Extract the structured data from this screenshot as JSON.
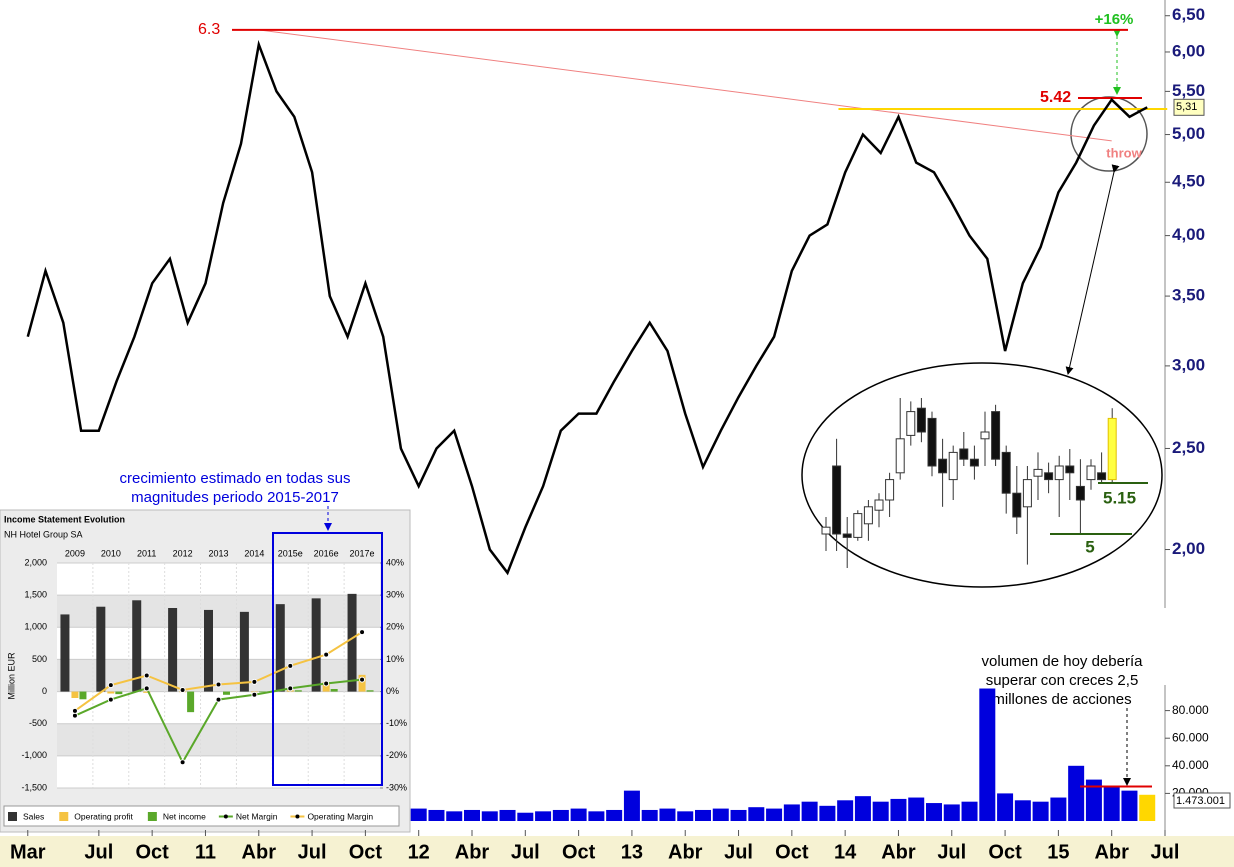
{
  "chart_data": [
    {
      "type": "line",
      "color": "#000000",
      "x": [
        "2010-03",
        "2010-04",
        "2010-05",
        "2010-06",
        "2010-07",
        "2010-08",
        "2010-09",
        "2010-10",
        "2010-11",
        "2010-12",
        "2011-01",
        "2011-02",
        "2011-03",
        "2011-04",
        "2011-05",
        "2011-06",
        "2011-07",
        "2011-08",
        "2011-09",
        "2011-10",
        "2011-11",
        "2011-12",
        "2012-01",
        "2012-02",
        "2012-03",
        "2012-04",
        "2012-05",
        "2012-06",
        "2012-07",
        "2012-08",
        "2012-09",
        "2012-10",
        "2012-11",
        "2012-12",
        "2013-01",
        "2013-02",
        "2013-03",
        "2013-04",
        "2013-05",
        "2013-06",
        "2013-07",
        "2013-08",
        "2013-09",
        "2013-10",
        "2013-11",
        "2013-12",
        "2014-01",
        "2014-02",
        "2014-03",
        "2014-04",
        "2014-05",
        "2014-06",
        "2014-07",
        "2014-08",
        "2014-09",
        "2014-10",
        "2014-11",
        "2014-12",
        "2015-01",
        "2015-02",
        "2015-03",
        "2015-04",
        "2015-05",
        "2015-06"
      ],
      "values": [
        3.2,
        3.7,
        3.3,
        2.6,
        2.6,
        2.9,
        3.2,
        3.6,
        3.8,
        3.3,
        3.6,
        4.3,
        4.9,
        6.1,
        5.5,
        5.2,
        4.6,
        3.5,
        3.2,
        3.6,
        3.2,
        2.5,
        2.3,
        2.5,
        2.6,
        2.3,
        2.0,
        1.9,
        2.1,
        2.3,
        2.6,
        2.7,
        2.7,
        2.9,
        3.1,
        3.3,
        3.1,
        2.7,
        2.4,
        2.6,
        2.8,
        3.0,
        3.2,
        3.7,
        4.0,
        4.1,
        4.6,
        5.0,
        4.8,
        5.2,
        4.7,
        4.6,
        4.3,
        4.0,
        3.8,
        3.1,
        3.6,
        3.9,
        4.4,
        4.7,
        5.1,
        5.4,
        5.2,
        5.31
      ],
      "xlim": [
        "2010-02",
        "2015-07"
      ],
      "xticks": [
        {
          "value": "2010-03",
          "label": "Mar"
        },
        {
          "value": "2010-07",
          "label": "Jul"
        },
        {
          "value": "2010-10",
          "label": "Oct"
        },
        {
          "value": "2011-01",
          "label": "11"
        },
        {
          "value": "2011-04",
          "label": "Abr"
        },
        {
          "value": "2011-07",
          "label": "Jul"
        },
        {
          "value": "2011-10",
          "label": "Oct"
        },
        {
          "value": "2012-01",
          "label": "12"
        },
        {
          "value": "2012-04",
          "label": "Abr"
        },
        {
          "value": "2012-07",
          "label": "Jul"
        },
        {
          "value": "2012-10",
          "label": "Oct"
        },
        {
          "value": "2013-01",
          "label": "13"
        },
        {
          "value": "2013-04",
          "label": "Abr"
        },
        {
          "value": "2013-07",
          "label": "Jul"
        },
        {
          "value": "2013-10",
          "label": "Oct"
        },
        {
          "value": "2014-01",
          "label": "14"
        },
        {
          "value": "2014-04",
          "label": "Abr"
        },
        {
          "value": "2014-07",
          "label": "Jul"
        },
        {
          "value": "2014-10",
          "label": "Oct"
        },
        {
          "value": "2015-01",
          "label": "15"
        },
        {
          "value": "2015-04",
          "label": "Abr"
        },
        {
          "value": "2015-07",
          "label": "Jul"
        }
      ],
      "ylim": [
        1.75,
        6.7
      ],
      "log_scale": true,
      "yticks": [
        {
          "value": 2,
          "label": "2,00"
        },
        {
          "value": 2.5,
          "label": "2,50"
        },
        {
          "value": 3,
          "label": "3,00"
        },
        {
          "value": 3.5,
          "label": "3,50"
        },
        {
          "value": 4,
          "label": "4,00"
        },
        {
          "value": 4.5,
          "label": "4,50"
        },
        {
          "value": 5,
          "label": "5,00"
        },
        {
          "value": 5.5,
          "label": "5,50"
        },
        {
          "value": 6,
          "label": "6,00"
        },
        {
          "value": 6.5,
          "label": "6,50"
        }
      ],
      "resistance": 6.3,
      "target": 5.42,
      "gain_label": "+16%",
      "throw_label": "throw",
      "last_price": {
        "value": 5.31,
        "label": "5,31"
      },
      "trendline": {
        "x": [
          "2011-04",
          "2015-04"
        ],
        "values": [
          6.3,
          4.93
        ]
      },
      "support": {
        "x": [
          "2014-04",
          "2015-06"
        ],
        "value": 5.29
      },
      "zoom": {
        "open": [
          5.0,
          5.2,
          5.0,
          4.99,
          5.03,
          5.07,
          5.1,
          5.18,
          5.29,
          5.37,
          5.34,
          5.22,
          5.16,
          5.25,
          5.22,
          5.28,
          5.36,
          5.24,
          5.12,
          5.08,
          5.17,
          5.18,
          5.16,
          5.2,
          5.14,
          5.16,
          5.18,
          5.16
        ],
        "high": [
          5.05,
          5.28,
          5.05,
          5.07,
          5.1,
          5.12,
          5.18,
          5.4,
          5.39,
          5.4,
          5.36,
          5.28,
          5.26,
          5.3,
          5.26,
          5.36,
          5.38,
          5.26,
          5.2,
          5.2,
          5.24,
          5.21,
          5.23,
          5.25,
          5.22,
          5.22,
          5.24,
          5.37
        ],
        "low": [
          4.95,
          4.95,
          4.9,
          4.98,
          4.98,
          5.02,
          5.05,
          5.16,
          5.26,
          5.27,
          5.17,
          5.08,
          5.1,
          5.2,
          5.16,
          5.2,
          5.2,
          5.06,
          5.0,
          4.91,
          5.1,
          5.12,
          5.05,
          5.1,
          5.0,
          5.13,
          5.15,
          5.15
        ],
        "close": [
          5.02,
          5.0,
          4.99,
          5.06,
          5.08,
          5.1,
          5.16,
          5.28,
          5.36,
          5.3,
          5.2,
          5.18,
          5.24,
          5.22,
          5.2,
          5.3,
          5.22,
          5.12,
          5.05,
          5.16,
          5.19,
          5.16,
          5.2,
          5.18,
          5.1,
          5.2,
          5.16,
          5.34
        ],
        "levels": [
          5.15,
          5
        ]
      },
      "notes": [
        [
          "crecimiento estimado en todas sus",
          "magnitudes periodo 2015-2017"
        ],
        [
          "volumen de hoy debería",
          "superar con creces 2,5",
          "millones de acciones"
        ]
      ]
    },
    {
      "type": "bar",
      "color": "#0000dd",
      "x": [
        "2012-01",
        "2012-02",
        "2012-03",
        "2012-04",
        "2012-05",
        "2012-06",
        "2012-07",
        "2012-08",
        "2012-09",
        "2012-10",
        "2012-11",
        "2012-12",
        "2013-01",
        "2013-02",
        "2013-03",
        "2013-04",
        "2013-05",
        "2013-06",
        "2013-07",
        "2013-08",
        "2013-09",
        "2013-10",
        "2013-11",
        "2013-12",
        "2014-01",
        "2014-02",
        "2014-03",
        "2014-04",
        "2014-05",
        "2014-06",
        "2014-07",
        "2014-08",
        "2014-09",
        "2014-10",
        "2014-11",
        "2014-12",
        "2015-01",
        "2015-02",
        "2015-03",
        "2015-04",
        "2015-05",
        "2015-06"
      ],
      "values": [
        9000,
        8000,
        7000,
        8000,
        7000,
        8000,
        6000,
        7000,
        8000,
        9000,
        7000,
        8000,
        22000,
        8000,
        9000,
        7000,
        8000,
        9000,
        8000,
        10000,
        9000,
        12000,
        14000,
        11000,
        15000,
        18000,
        14000,
        16000,
        17000,
        13000,
        12000,
        14000,
        96000,
        20000,
        15000,
        14000,
        17000,
        40000,
        30000,
        25000,
        22000,
        19000
      ],
      "ylim": [
        0,
        100000
      ],
      "yticks": [
        {
          "value": 20000,
          "label": "20.000"
        },
        {
          "value": 40000,
          "label": "40.000"
        },
        {
          "value": 60000,
          "label": "60.000"
        },
        {
          "value": 80000,
          "label": "80.000"
        }
      ],
      "alert_level": 25000,
      "last_label": "1.473.001"
    },
    {
      "type": "combo",
      "title": "Income Statement Evolution",
      "subtitle": "NH Hotel Group SA",
      "y_label": "Million EUR",
      "categories": [
        "2009",
        "2010",
        "2011",
        "2012",
        "2013",
        "2014",
        "2015e",
        "2016e",
        "2017e"
      ],
      "ylim": [
        -1500,
        2000
      ],
      "yticks": [
        {
          "value": -1500,
          "label": "-1,500"
        },
        {
          "value": -1000,
          "label": "-1,000"
        },
        -500,
        0,
        500,
        {
          "value": 1000,
          "label": "1,000"
        },
        {
          "value": 1500,
          "label": "1,500"
        },
        {
          "value": 2000,
          "label": "2,000"
        }
      ],
      "y2lim": [
        -30,
        40
      ],
      "y2ticks": [
        {
          "value": -30,
          "label": "-30%"
        },
        {
          "value": -20,
          "label": "-20%"
        },
        {
          "value": -10,
          "label": "-10%"
        },
        {
          "value": 0,
          "label": "0%"
        },
        {
          "value": 10,
          "label": "10%"
        },
        {
          "value": 20,
          "label": "20%"
        },
        {
          "value": 30,
          "label": "30%"
        },
        {
          "value": 40,
          "label": "40%"
        }
      ],
      "series": [
        {
          "name": "Sales",
          "color": "#333333",
          "kind": "bar",
          "values": [
            1200,
            1320,
            1420,
            1300,
            1270,
            1240,
            1360,
            1450,
            1520
          ]
        },
        {
          "name": "Operating profit",
          "color": "#f5c342",
          "kind": "bar",
          "values": [
            -100,
            -30,
            -20,
            -10,
            0,
            -10,
            20,
            150,
            260
          ]
        },
        {
          "name": "Net income",
          "color": "#5aa82a",
          "kind": "bar",
          "values": [
            -120,
            -40,
            0,
            -320,
            -50,
            -10,
            20,
            40,
            20
          ]
        },
        {
          "name": "Net Margin",
          "color": "#5aa82a",
          "kind": "line",
          "axis": "y2",
          "values": [
            -7.5,
            -2.5,
            1,
            -22,
            -2.5,
            -1,
            1,
            2.5,
            3.7
          ]
        },
        {
          "name": "Operating Margin",
          "color": "#f5c342",
          "kind": "line",
          "axis": "y2",
          "values": [
            -6,
            2,
            5,
            0.5,
            2.2,
            3,
            8,
            11.5,
            18.5
          ]
        }
      ]
    }
  ]
}
